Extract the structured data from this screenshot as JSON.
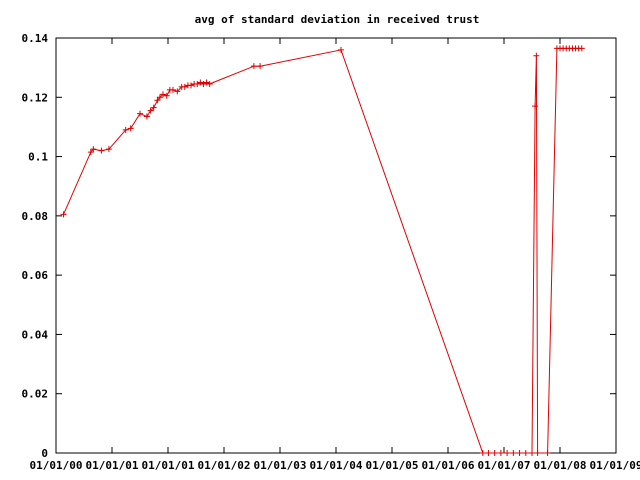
{
  "chart_data": {
    "type": "line",
    "title": "avg of standard deviation in received trust",
    "xlabel": "",
    "ylabel": "",
    "x_ticks": [
      "01/01/00",
      "01/01/01",
      "01/01/01",
      "01/01/02",
      "01/01/03",
      "01/01/04",
      "01/01/05",
      "01/01/06",
      "01/01/07",
      "01/01/08",
      "01/01/09"
    ],
    "y_ticks": [
      "0",
      "0.02",
      "0.04",
      "0.06",
      "0.08",
      "0.1",
      "0.12",
      "0.14"
    ],
    "xlim": [
      0,
      9
    ],
    "ylim": [
      0,
      0.14
    ],
    "grid": false,
    "color": "#e00000",
    "series": [
      {
        "x": [
          0.12,
          0.56,
          0.6,
          0.73,
          0.85,
          1.12,
          1.2,
          1.35,
          1.46,
          1.52,
          1.57,
          1.63,
          1.67,
          1.72,
          1.78,
          1.83,
          1.88,
          1.95,
          2.02,
          2.07,
          2.12,
          2.17,
          2.22,
          2.27,
          2.32,
          2.37,
          2.42,
          2.47,
          3.18,
          3.28,
          4.58,
          6.86,
          6.95,
          7.05,
          7.15,
          7.25,
          7.35,
          7.45,
          7.55,
          7.65,
          7.7,
          7.72,
          7.74,
          7.9,
          8.05,
          8.1,
          8.15,
          8.2,
          8.25,
          8.3,
          8.35,
          8.4,
          8.45
        ],
        "y": [
          0.0805,
          0.1015,
          0.1025,
          0.102,
          0.1025,
          0.109,
          0.1095,
          0.1145,
          0.1135,
          0.1155,
          0.1165,
          0.119,
          0.12,
          0.121,
          0.1205,
          0.1225,
          0.1225,
          0.122,
          0.1235,
          0.1235,
          0.124,
          0.124,
          0.1245,
          0.1245,
          0.125,
          0.1245,
          0.125,
          0.1245,
          0.1305,
          0.1305,
          0.136,
          0,
          0,
          0,
          0,
          0,
          0,
          0,
          0,
          0,
          0.117,
          0.134,
          0,
          0,
          0.1365,
          0.1365,
          0.1365,
          0.1365,
          0.1365,
          0.1365,
          0.1365,
          0.1365,
          0.1365
        ]
      }
    ]
  }
}
